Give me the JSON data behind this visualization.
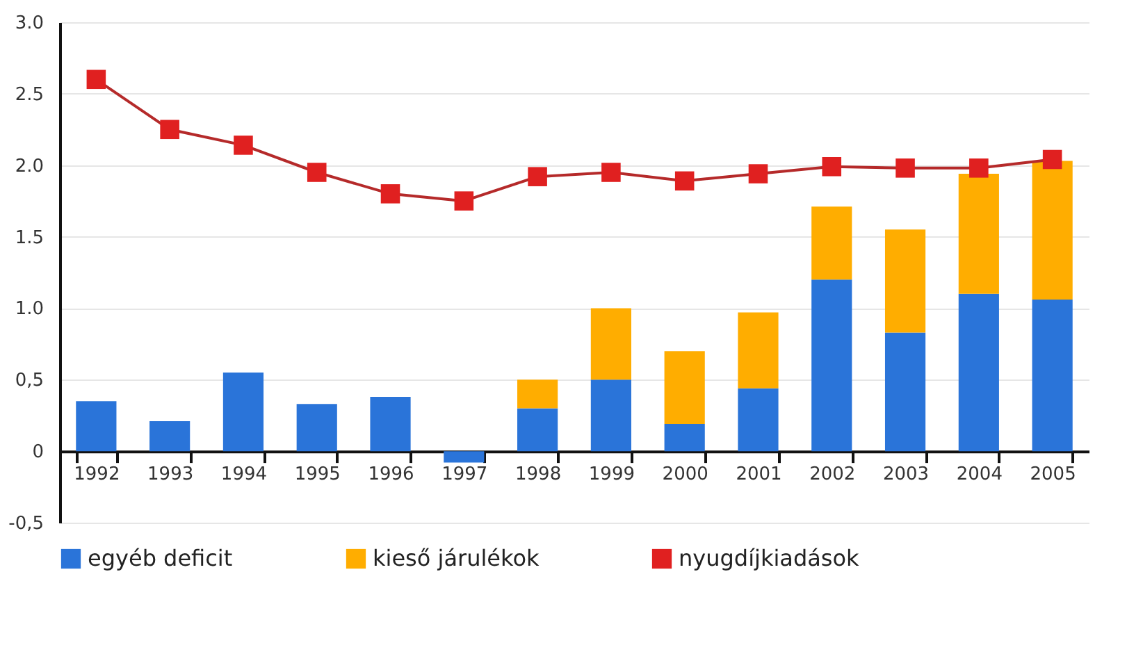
{
  "chart_data": {
    "type": "bar",
    "stacked": true,
    "categories": [
      "1992",
      "1993",
      "1994",
      "1995",
      "1996",
      "1997",
      "1998",
      "1999",
      "2000",
      "2001",
      "2002",
      "2003",
      "2004",
      "2005"
    ],
    "series": [
      {
        "name": "egyéb deficit",
        "color": "#2a74d9",
        "values": [
          0.35,
          0.21,
          0.55,
          0.33,
          0.38,
          -0.08,
          0.3,
          0.5,
          0.19,
          0.44,
          1.2,
          0.83,
          1.1,
          1.06
        ]
      },
      {
        "name": "kieső járulékok",
        "color": "#ffad00",
        "values": [
          null,
          null,
          null,
          null,
          null,
          null,
          0.2,
          0.5,
          0.51,
          0.53,
          0.51,
          0.72,
          0.84,
          0.97
        ]
      },
      {
        "name": "nyugdíjkiadások",
        "color": "#e02020",
        "type": "line",
        "marker": "square",
        "line_style": "solid",
        "values": [
          2.6,
          2.25,
          2.14,
          1.95,
          1.8,
          1.75,
          1.92,
          1.95,
          1.89,
          1.94,
          1.99,
          1.98,
          1.98,
          2.04
        ]
      }
    ],
    "ylim": [
      -0.5,
      3.0
    ],
    "yticks": [
      {
        "value": -0.5,
        "label": "-0,5"
      },
      0,
      {
        "value": 0.5,
        "label": "0,5"
      },
      {
        "value": 1.0,
        "label": "1.0"
      },
      1.5,
      {
        "value": 2.0,
        "label": "2.0"
      },
      2.5,
      {
        "value": 3.0,
        "label": "3.0"
      }
    ],
    "grid": "y",
    "legend": "bottom"
  }
}
